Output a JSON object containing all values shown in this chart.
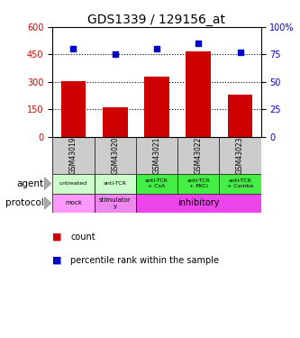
{
  "title": "GDS1339 / 129156_at",
  "samples": [
    "GSM43019",
    "GSM43020",
    "GSM43021",
    "GSM43022",
    "GSM43023"
  ],
  "counts": [
    305,
    160,
    330,
    468,
    230
  ],
  "percentiles": [
    80,
    75,
    80,
    85,
    77
  ],
  "ylim_left": [
    0,
    600
  ],
  "ylim_right": [
    0,
    100
  ],
  "yticks_left": [
    0,
    150,
    300,
    450,
    600
  ],
  "yticks_right": [
    0,
    25,
    50,
    75,
    100
  ],
  "bar_color": "#cc0000",
  "scatter_color": "#0000cc",
  "agent_labels": [
    "untreated",
    "anti-TCR",
    "anti-TCR\n+ CsA",
    "anti-TCR\n+ PKCi",
    "anti-TCR\n+ Combo"
  ],
  "agent_colors_light": [
    "#ccffcc",
    "#ccffcc"
  ],
  "agent_colors_dark": [
    "#44ee44",
    "#44ee44",
    "#44ee44"
  ],
  "protocol_mock_color": "#ff99ff",
  "protocol_stim_color": "#ee88ee",
  "protocol_inhib_color": "#ee44ee",
  "sample_bg_color": "#cccccc",
  "title_fontsize": 10
}
